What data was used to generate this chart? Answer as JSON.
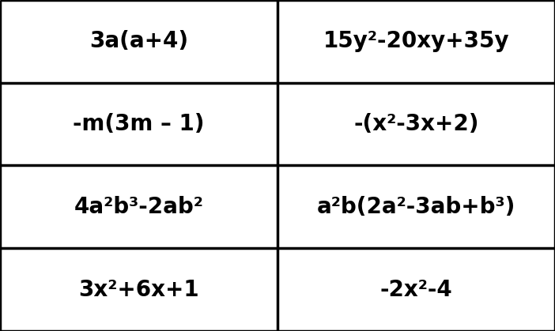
{
  "rows": 4,
  "cols": 2,
  "bg_color": "#ffffff",
  "border_color": "#000000",
  "text_color": "#000000",
  "font_size": 20,
  "line_width": 2.5,
  "figsize": [
    7.02,
    4.19
  ],
  "dpi": 100,
  "cell_texts": [
    [
      "3a(a+4)",
      "15y²-20xy+35y"
    ],
    [
      "-m(3m – 1)",
      "-(x²-3x+2)"
    ],
    [
      "4a²b³-2ab²",
      "a²b(2a²-3ab+b³)"
    ],
    [
      "3x²+6x+1",
      "-2x²-4"
    ]
  ]
}
